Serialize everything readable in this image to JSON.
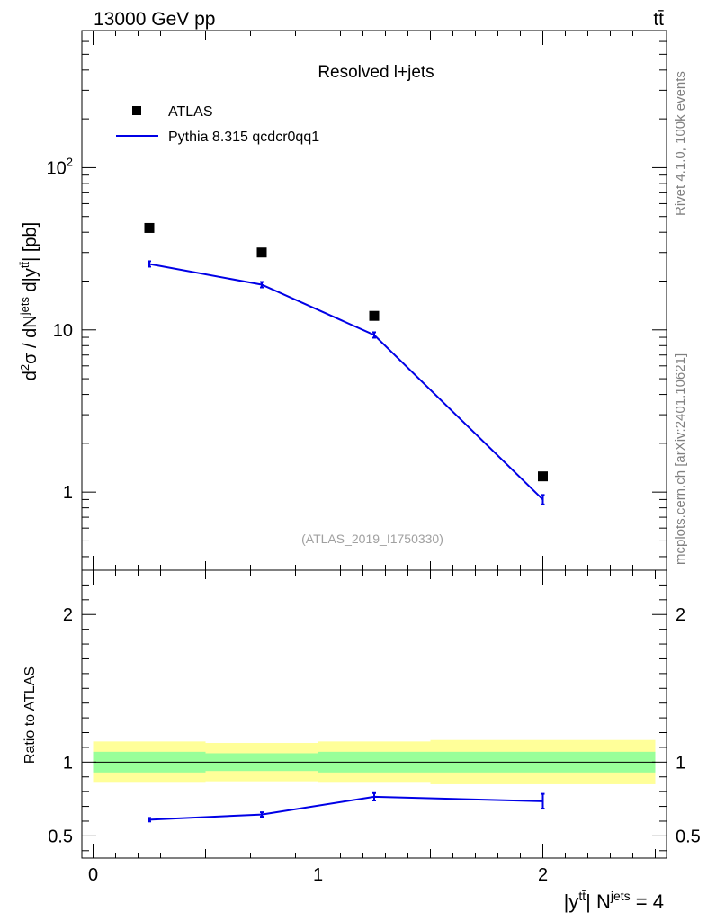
{
  "header": {
    "left_label": "13000 GeV pp",
    "right_label": "tt̄"
  },
  "side_labels": {
    "rivet": "Rivet 4.1.0,  100k events",
    "mcplots": "mcplots.cern.ch [arXiv:2401.10621]"
  },
  "colors": {
    "data": "#000000",
    "mc": "#0000e6",
    "band_inner": "#99ff99",
    "band_outer": "#ffff99"
  },
  "chart_data": [
    {
      "type": "scatter",
      "title": "Resolved l+jets",
      "watermark": "(ATLAS_2019_I1750330)",
      "ylabel": "d²σ / dN^{jets} d|y^{tt̄}| [pb]",
      "yscale": "log",
      "xlim": [
        -0.05,
        2.55
      ],
      "ylim": [
        0.33,
        700
      ],
      "y_ticks": [
        {
          "value": 1,
          "label": "1"
        },
        {
          "value": 10,
          "label": "10"
        },
        {
          "value": 100,
          "label": "10²"
        }
      ],
      "legend": [
        {
          "name": "ATLAS",
          "style": "square-marker"
        },
        {
          "name": "Pythia 8.315 qcdcr0qq1",
          "style": "line"
        }
      ],
      "legend_position": "top-left",
      "series": [
        {
          "name": "ATLAS",
          "x": [
            0.25,
            0.75,
            1.25,
            2.0
          ],
          "y": [
            42.5,
            30.0,
            12.2,
            1.25
          ]
        },
        {
          "name": "Pythia 8.315 qcdcr0qq1",
          "x": [
            0.25,
            0.75,
            1.25,
            2.0
          ],
          "y": [
            25.5,
            19.0,
            9.3,
            0.9
          ],
          "yerr": [
            0.3,
            0.25,
            0.2,
            0.06
          ]
        }
      ]
    },
    {
      "type": "line",
      "ylabel": "Ratio to ATLAS",
      "xlabel": "|y^{tt̄}| N^{jets} = 4",
      "xlim": [
        -0.05,
        2.55
      ],
      "ylim": [
        0.35,
        2.3
      ],
      "x_ticks": [
        0,
        1,
        2
      ],
      "y_ticks": [
        0.5,
        1,
        2
      ],
      "bands": [
        {
          "x_edges": [
            0.0,
            0.5,
            1.0,
            1.5,
            2.5
          ],
          "stat_low": [
            0.93,
            0.94,
            0.93,
            0.93
          ],
          "stat_high": [
            1.07,
            1.06,
            1.07,
            1.07
          ],
          "total_low": [
            0.86,
            0.87,
            0.86,
            0.85
          ],
          "total_high": [
            1.14,
            1.13,
            1.14,
            1.15
          ]
        }
      ],
      "series": [
        {
          "name": "Pythia 8.315 qcdcr0qq1",
          "x": [
            0.25,
            0.75,
            1.25,
            2.0
          ],
          "y": [
            0.61,
            0.645,
            0.765,
            0.735
          ],
          "yerr": [
            0.012,
            0.015,
            0.025,
            0.05
          ]
        }
      ]
    }
  ]
}
